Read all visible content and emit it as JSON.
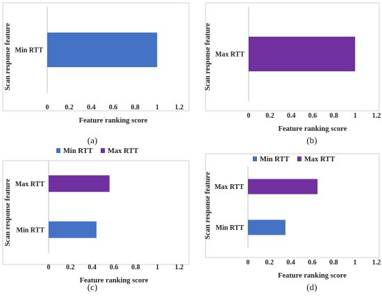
{
  "colors": {
    "min_rtt": "#4472C4",
    "max_rtt": "#7030A0"
  },
  "chart_data": [
    {
      "type": "bar",
      "orientation": "horizontal",
      "caption": "(a)",
      "categories": [
        "Min RTT"
      ],
      "series": [
        {
          "name": "",
          "values": [
            1.0
          ]
        }
      ],
      "xlabel": "Feature ranking score",
      "ylabel": "Scan response feature",
      "xlim": [
        0,
        1.2
      ],
      "xticks": [
        "0",
        "0.2",
        "0.4",
        "0.6",
        "0.8",
        "1",
        "1.2"
      ],
      "legend": null,
      "grid": false
    },
    {
      "type": "bar",
      "orientation": "horizontal",
      "caption": "(b)",
      "categories": [
        "Max RTT"
      ],
      "series": [
        {
          "name": "",
          "values": [
            1.0
          ]
        }
      ],
      "xlabel": "Feature ranking score",
      "ylabel": "Scan response feature",
      "xlim": [
        0,
        1.2
      ],
      "xticks": [
        "0",
        "0.2",
        "0.4",
        "0.6",
        "0.8",
        "1",
        "1.2"
      ],
      "legend": null,
      "grid": false
    },
    {
      "type": "bar",
      "orientation": "horizontal",
      "caption": "(c)",
      "categories": [
        "Min RTT",
        "Max RTT"
      ],
      "values": [
        0.44,
        0.56
      ],
      "xlabel": "Feature ranking score",
      "ylabel": "Scan response feature",
      "xlim": [
        0,
        1.2
      ],
      "xticks": [
        "0",
        "0.2",
        "0.4",
        "0.6",
        "0.8",
        "1",
        "1.2"
      ],
      "legend": {
        "position": "top",
        "entries": [
          "Min RTT",
          "Max RTT"
        ]
      },
      "grid": false
    },
    {
      "type": "bar",
      "orientation": "horizontal",
      "caption": "(d)",
      "categories": [
        "Min RTT",
        "Max RTT"
      ],
      "values": [
        0.35,
        0.65
      ],
      "xlabel": "Feature ranking score",
      "ylabel": "Scan response feature",
      "xlim": [
        0,
        1.2
      ],
      "xticks": [
        "0",
        "0.2",
        "0.4",
        "0.6",
        "0.8",
        "1",
        "1.2"
      ],
      "legend": {
        "position": "top",
        "entries": [
          "Min RTT",
          "Max RTT"
        ]
      },
      "grid": false
    }
  ]
}
